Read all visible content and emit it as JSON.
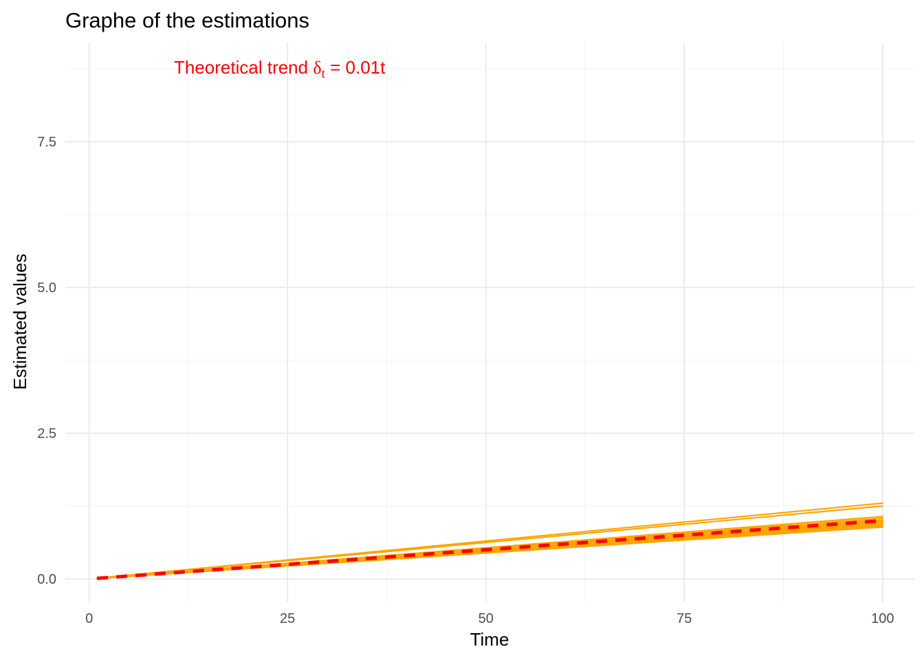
{
  "chart_data": {
    "type": "line",
    "title": "Graphe of the estimations",
    "xlabel": "Time",
    "ylabel": "Estimated values",
    "xlim": [
      -3,
      104
    ],
    "ylim": [
      -0.4,
      9.2
    ],
    "x_ticks": [
      0,
      25,
      50,
      75,
      100
    ],
    "x_tick_labels": [
      "0",
      "25",
      "50",
      "75",
      "100"
    ],
    "y_ticks": [
      0,
      2.5,
      5,
      7.5
    ],
    "y_tick_labels": [
      "0.0",
      "2.5",
      "5.0",
      "7.5"
    ],
    "grid": true,
    "legend": "none",
    "annotation": {
      "text_prefix": "Theoretical trend ",
      "symbol": "δ",
      "subscript": "t",
      "equals": " = ",
      "value": "0.01t",
      "color": "#ff0000"
    },
    "estimation_color": "#ffa500",
    "trend_color": "#ff0000",
    "estimation_slopes": [
      0.013,
      0.0125,
      0.0107,
      0.0104,
      0.0101,
      0.0099,
      0.0097,
      0.0095,
      0.0093,
      0.0091,
      0.0089
    ],
    "estimation_x_range": [
      1,
      100
    ],
    "series": [
      {
        "style": "dashed",
        "color": "#ff0000",
        "x": [
          1,
          100
        ],
        "y": [
          0.01,
          1.0
        ]
      }
    ]
  }
}
